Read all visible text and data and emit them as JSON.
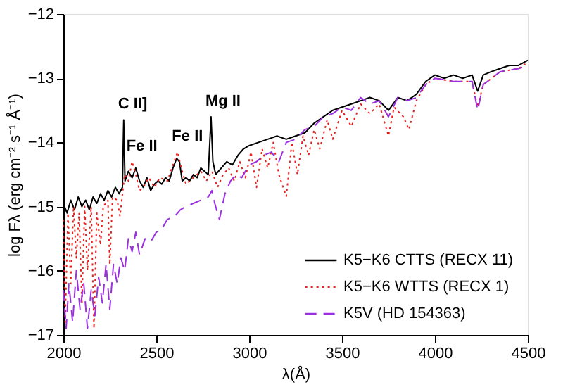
{
  "chart_data": {
    "type": "line",
    "xlabel": "λ(Å)",
    "ylabel": "log Fλ (erg cm⁻² s⁻¹ Å⁻¹)",
    "xlim": [
      2000,
      4500
    ],
    "xticks": [
      2000,
      2500,
      3000,
      3500,
      4000,
      4500
    ],
    "ylim": [
      -17,
      -12
    ],
    "yticks": [
      -17,
      -16,
      -15,
      -14,
      -13,
      -12
    ],
    "grid": false,
    "legend": "bottom right",
    "annotations": [
      {
        "text": "C II]",
        "x": 2325,
        "y": -13.65
      },
      {
        "text": "Fe II",
        "x": 2370,
        "y": -14.3
      },
      {
        "text": "Fe II",
        "x": 2615,
        "y": -14.15
      },
      {
        "text": "Mg II",
        "x": 2795,
        "y": -13.6
      }
    ],
    "series": [
      {
        "name": "K5−K6 CTTS (RECX 11)",
        "color": "#000000",
        "line_style": "solid",
        "x": [
          2000,
          2020,
          2040,
          2060,
          2080,
          2100,
          2120,
          2140,
          2160,
          2180,
          2200,
          2220,
          2240,
          2260,
          2280,
          2300,
          2318,
          2325,
          2332,
          2350,
          2370,
          2390,
          2410,
          2430,
          2450,
          2470,
          2490,
          2510,
          2530,
          2550,
          2570,
          2590,
          2610,
          2625,
          2640,
          2660,
          2680,
          2700,
          2720,
          2740,
          2760,
          2780,
          2795,
          2805,
          2820,
          2850,
          2880,
          2910,
          2940,
          2970,
          3000,
          3050,
          3100,
          3150,
          3200,
          3250,
          3300,
          3350,
          3400,
          3450,
          3500,
          3550,
          3600,
          3650,
          3700,
          3750,
          3800,
          3850,
          3900,
          3950,
          4000,
          4050,
          4100,
          4150,
          4200,
          4230,
          4260,
          4300,
          4350,
          4400,
          4450,
          4500
        ],
        "values": [
          -14.95,
          -15.1,
          -14.9,
          -15.05,
          -14.85,
          -15.0,
          -14.9,
          -15.05,
          -14.85,
          -14.95,
          -14.8,
          -14.9,
          -14.75,
          -14.85,
          -14.7,
          -14.8,
          -14.7,
          -13.65,
          -14.6,
          -14.45,
          -14.55,
          -14.4,
          -14.6,
          -14.7,
          -14.55,
          -14.75,
          -14.65,
          -14.6,
          -14.65,
          -14.55,
          -14.6,
          -14.4,
          -14.25,
          -14.3,
          -14.6,
          -14.55,
          -14.6,
          -14.5,
          -14.55,
          -14.4,
          -14.45,
          -14.5,
          -13.6,
          -14.3,
          -14.5,
          -14.4,
          -14.3,
          -14.35,
          -14.2,
          -14.1,
          -14.05,
          -14.0,
          -13.95,
          -13.9,
          -13.95,
          -13.9,
          -13.85,
          -13.7,
          -13.6,
          -13.5,
          -13.45,
          -13.4,
          -13.35,
          -13.3,
          -13.35,
          -13.5,
          -13.3,
          -13.35,
          -13.25,
          -13.05,
          -12.95,
          -13.0,
          -12.95,
          -13.0,
          -12.95,
          -13.2,
          -12.95,
          -12.9,
          -12.85,
          -12.8,
          -12.8,
          -12.72
        ]
      },
      {
        "name": "K5−K6 WTTS (RECX 1)",
        "color": "#e8201c",
        "line_style": "dotted",
        "x": [
          2000,
          2010,
          2025,
          2040,
          2055,
          2070,
          2085,
          2100,
          2115,
          2130,
          2150,
          2165,
          2180,
          2200,
          2215,
          2240,
          2250,
          2265,
          2290,
          2305,
          2330,
          2350,
          2370,
          2390,
          2410,
          2430,
          2460,
          2490,
          2520,
          2560,
          2590,
          2615,
          2635,
          2660,
          2700,
          2740,
          2770,
          2800,
          2830,
          2860,
          2890,
          2920,
          2950,
          2980,
          3010,
          3040,
          3070,
          3100,
          3130,
          3160,
          3200,
          3230,
          3260,
          3290,
          3320,
          3350,
          3380,
          3420,
          3450,
          3500,
          3550,
          3600,
          3650,
          3700,
          3750,
          3780,
          3830,
          3860,
          3900,
          3950,
          4000,
          4100,
          4200,
          4230,
          4260,
          4350,
          4450,
          4500
        ],
        "values": [
          -15.2,
          -16.8,
          -15.1,
          -16.2,
          -15.0,
          -15.8,
          -15.1,
          -16.5,
          -15.0,
          -16.0,
          -15.0,
          -16.9,
          -15.1,
          -15.6,
          -15.0,
          -14.9,
          -15.9,
          -14.85,
          -14.9,
          -15.15,
          -14.5,
          -14.6,
          -14.3,
          -14.5,
          -14.75,
          -14.7,
          -14.55,
          -14.7,
          -14.55,
          -14.6,
          -14.35,
          -14.15,
          -14.4,
          -14.65,
          -14.55,
          -14.45,
          -14.6,
          -14.45,
          -14.7,
          -14.5,
          -14.4,
          -14.6,
          -14.3,
          -14.55,
          -14.15,
          -14.7,
          -14.1,
          -14.4,
          -14.0,
          -14.5,
          -14.84,
          -14.0,
          -14.5,
          -13.9,
          -14.2,
          -13.8,
          -14.1,
          -13.65,
          -13.95,
          -13.5,
          -13.75,
          -13.4,
          -13.55,
          -13.4,
          -13.9,
          -13.45,
          -13.6,
          -13.8,
          -13.35,
          -13.1,
          -13.0,
          -13.05,
          -13.05,
          -13.45,
          -13.1,
          -12.9,
          -12.85,
          -12.75
        ]
      },
      {
        "name": "K5V (HD 154363)",
        "color": "#9b30e0",
        "line_style": "dashed",
        "x": [
          2000,
          2015,
          2030,
          2050,
          2070,
          2090,
          2110,
          2130,
          2150,
          2170,
          2190,
          2210,
          2230,
          2250,
          2270,
          2290,
          2310,
          2330,
          2350,
          2370,
          2390,
          2410,
          2440,
          2470,
          2500,
          2530,
          2560,
          2600,
          2630,
          2660,
          2700,
          2740,
          2780,
          2800,
          2815,
          2840,
          2870,
          2900,
          2930,
          2960,
          3000,
          3040,
          3080,
          3120,
          3160,
          3200,
          3250,
          3300,
          3350,
          3400,
          3450,
          3500,
          3550,
          3600,
          3650,
          3700,
          3750,
          3800,
          3850,
          3900,
          3950,
          4000,
          4100,
          4200,
          4230,
          4260,
          4350,
          4450,
          4500
        ],
        "values": [
          -16.3,
          -16.9,
          -16.2,
          -16.8,
          -16.0,
          -16.6,
          -16.2,
          -16.9,
          -16.3,
          -16.7,
          -16.1,
          -16.5,
          -15.9,
          -16.6,
          -15.9,
          -16.2,
          -15.8,
          -16.0,
          -15.5,
          -15.7,
          -15.4,
          -15.75,
          -15.5,
          -15.55,
          -15.4,
          -15.35,
          -15.2,
          -15.15,
          -15.05,
          -15.0,
          -14.95,
          -14.9,
          -14.85,
          -14.75,
          -14.95,
          -15.2,
          -14.8,
          -14.6,
          -14.5,
          -14.55,
          -14.35,
          -14.3,
          -14.2,
          -14.15,
          -14.3,
          -14.0,
          -13.95,
          -13.8,
          -13.75,
          -13.6,
          -13.55,
          -13.45,
          -13.5,
          -13.3,
          -13.4,
          -13.35,
          -13.6,
          -13.3,
          -13.35,
          -13.3,
          -13.1,
          -13.0,
          -13.05,
          -13.05,
          -13.5,
          -13.1,
          -12.9,
          -12.85,
          -12.8
        ]
      }
    ]
  }
}
